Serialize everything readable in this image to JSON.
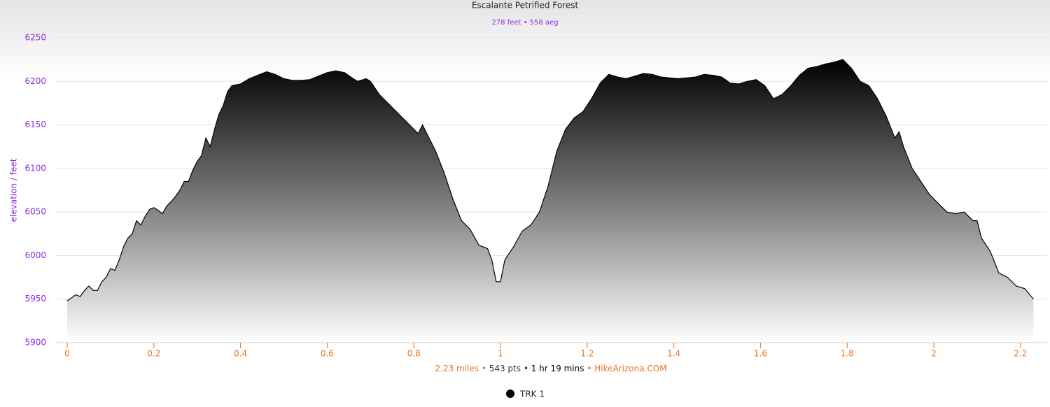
{
  "chart_data": {
    "type": "area",
    "title": "Escalante Petrified Forest",
    "subtitle": "278 feet • 558 aeg",
    "y_label": "elevation / feet",
    "footer": [
      {
        "text": "2.23 miles",
        "color": "#e8731e"
      },
      {
        "text": "•",
        "color": "#e8731e"
      },
      {
        "text": "543 pts",
        "color": "#333333"
      },
      {
        "text": "•",
        "color": "#333333"
      },
      {
        "text": "1 hr 19 mins",
        "color": "#000000"
      },
      {
        "text": "•",
        "color": "#e8731e"
      },
      {
        "text": "HikeArizona.COM",
        "color": "#e8731e"
      }
    ],
    "x": [
      0,
      0.02,
      0.03,
      0.04,
      0.05,
      0.06,
      0.07,
      0.08,
      0.09,
      0.1,
      0.11,
      0.12,
      0.13,
      0.14,
      0.15,
      0.16,
      0.17,
      0.18,
      0.19,
      0.2,
      0.21,
      0.22,
      0.23,
      0.24,
      0.25,
      0.26,
      0.27,
      0.28,
      0.29,
      0.3,
      0.31,
      0.32,
      0.33,
      0.34,
      0.35,
      0.36,
      0.37,
      0.38,
      0.4,
      0.42,
      0.44,
      0.46,
      0.48,
      0.5,
      0.52,
      0.54,
      0.56,
      0.58,
      0.6,
      0.62,
      0.64,
      0.66,
      0.67,
      0.69,
      0.7,
      0.72,
      0.74,
      0.76,
      0.78,
      0.8,
      0.81,
      0.82,
      0.83,
      0.85,
      0.87,
      0.89,
      0.91,
      0.93,
      0.95,
      0.97,
      0.98,
      0.99,
      1.0,
      1.01,
      1.03,
      1.05,
      1.07,
      1.09,
      1.11,
      1.13,
      1.15,
      1.17,
      1.19,
      1.21,
      1.23,
      1.25,
      1.27,
      1.29,
      1.31,
      1.33,
      1.35,
      1.37,
      1.39,
      1.41,
      1.43,
      1.45,
      1.47,
      1.49,
      1.51,
      1.53,
      1.55,
      1.57,
      1.59,
      1.61,
      1.63,
      1.65,
      1.67,
      1.69,
      1.71,
      1.73,
      1.75,
      1.77,
      1.79,
      1.81,
      1.83,
      1.85,
      1.87,
      1.89,
      1.91,
      1.92,
      1.93,
      1.95,
      1.97,
      1.99,
      2.01,
      2.03,
      2.05,
      2.07,
      2.09,
      2.1,
      2.11,
      2.13,
      2.15,
      2.17,
      2.19,
      2.21,
      2.23
    ],
    "series": [
      {
        "name": "TRK 1",
        "color": "#000000",
        "values": [
          5948,
          5955,
          5953,
          5960,
          5965,
          5960,
          5960,
          5970,
          5975,
          5985,
          5983,
          5995,
          6010,
          6020,
          6025,
          6040,
          6035,
          6045,
          6053,
          6055,
          6052,
          6048,
          6057,
          6062,
          6068,
          6075,
          6085,
          6085,
          6098,
          6108,
          6115,
          6135,
          6125,
          6145,
          6162,
          6172,
          6188,
          6195,
          6197,
          6203,
          6207,
          6211,
          6208,
          6203,
          6201,
          6201,
          6202,
          6206,
          6210,
          6212,
          6210,
          6203,
          6200,
          6203,
          6200,
          6185,
          6175,
          6165,
          6155,
          6145,
          6140,
          6150,
          6140,
          6120,
          6095,
          6065,
          6040,
          6030,
          6012,
          6008,
          5995,
          5970,
          5970,
          5995,
          6010,
          6028,
          6035,
          6050,
          6080,
          6120,
          6145,
          6158,
          6165,
          6180,
          6198,
          6208,
          6205,
          6203,
          6206,
          6209,
          6208,
          6205,
          6204,
          6203,
          6204,
          6205,
          6208,
          6207,
          6205,
          6198,
          6197,
          6200,
          6202,
          6195,
          6180,
          6185,
          6195,
          6207,
          6215,
          6217,
          6220,
          6222,
          6225,
          6215,
          6200,
          6195,
          6180,
          6160,
          6135,
          6142,
          6125,
          6100,
          6085,
          6070,
          6060,
          6050,
          6048,
          6050,
          6040,
          6040,
          6020,
          6005,
          5980,
          5975,
          5965,
          5962,
          5950
        ]
      }
    ],
    "xlim": [
      0,
      2.25
    ],
    "xticks": [
      0,
      {
        "value": 0.2,
        "label": "0.2"
      },
      {
        "value": 0.4,
        "label": "0.4"
      },
      {
        "value": 0.6,
        "label": "0.6"
      },
      {
        "value": 0.8,
        "label": "0.8"
      },
      1,
      {
        "value": 1.2,
        "label": "1.2"
      },
      {
        "value": 1.4,
        "label": "1.4"
      },
      {
        "value": 1.6,
        "label": "1.6"
      },
      {
        "value": 1.8,
        "label": "1.8"
      },
      2,
      {
        "value": 2.2,
        "label": "2.2"
      }
    ],
    "ylim": [
      5900,
      6250
    ],
    "yticks": [
      5900,
      5950,
      6000,
      6050,
      6100,
      6150,
      6200,
      6250
    ],
    "grid": true,
    "legend": "bottom"
  }
}
